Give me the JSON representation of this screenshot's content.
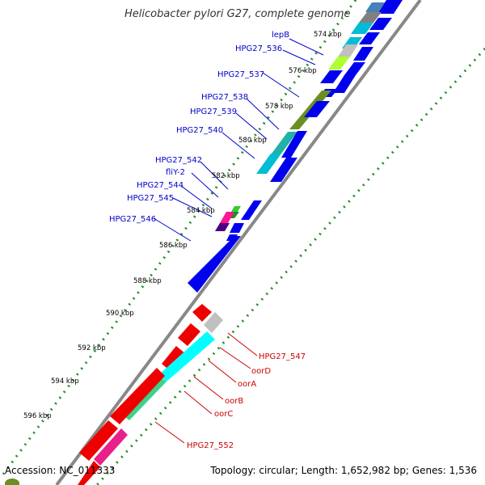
{
  "title": "Helicobacter pylori G27, complete genome",
  "footer": {
    "accession": "Accession: NC_011333",
    "summary": "Topology: circular; Length: 1,652,982 bp; Genes: 1,536"
  },
  "colors": {
    "reverse_strand_gene": "#0000ee",
    "forward_strand_gene": "#ee0000",
    "label_reverse": "#0000cc",
    "label_forward": "#cc0000",
    "backbone": "#888888",
    "tick_dots": "#228b22"
  },
  "ticks": [
    "574 kbp",
    "576 kbp",
    "578 kbp",
    "580 kbp",
    "582 kbp",
    "584 kbp",
    "586 kbp",
    "588 kbp",
    "590 kbp",
    "592 kbp",
    "594 kbp",
    "596 kbp"
  ],
  "gene_labels_top": [
    "lepB",
    "HPG27_536",
    "HPG27_537",
    "HPG27_538",
    "HPG27_539",
    "HPG27_540",
    "HPG27_542",
    "fliY-2",
    "HPG27_544",
    "HPG27_545",
    "HPG27_546"
  ],
  "gene_labels_bottom": [
    "HPG27_547",
    "oorD",
    "oorA",
    "oorB",
    "oorC",
    "HPG27_552"
  ]
}
